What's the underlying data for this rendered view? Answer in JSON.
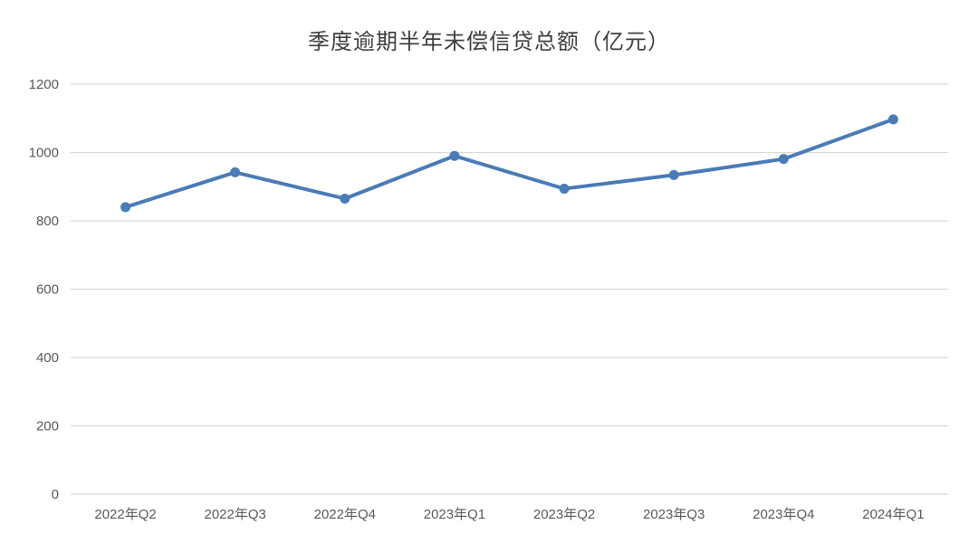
{
  "chart_data": {
    "type": "line",
    "title": "季度逾期半年未偿信贷总额（亿元）",
    "categories": [
      "2022年Q2",
      "2022年Q3",
      "2022年Q4",
      "2023年Q1",
      "2023年Q2",
      "2023年Q3",
      "2023年Q4",
      "2024年Q1"
    ],
    "series": [
      {
        "name": "季度逾期半年未偿信贷总额",
        "values": [
          840,
          942,
          865,
          990,
          894,
          934,
          981,
          1097
        ]
      }
    ],
    "xlabel": "",
    "ylabel": "",
    "ylim": [
      0,
      1200
    ],
    "y_ticks": [
      0,
      200,
      400,
      600,
      800,
      1000,
      1200
    ],
    "grid": "horizontal",
    "legend": "none",
    "colors": {
      "line": "#4A7BB7",
      "marker": "#4A7BB7",
      "gridline": "#D9D9D9",
      "tick_text": "#595959",
      "title_text": "#3F3F3F",
      "background": "#FFFFFF"
    }
  }
}
